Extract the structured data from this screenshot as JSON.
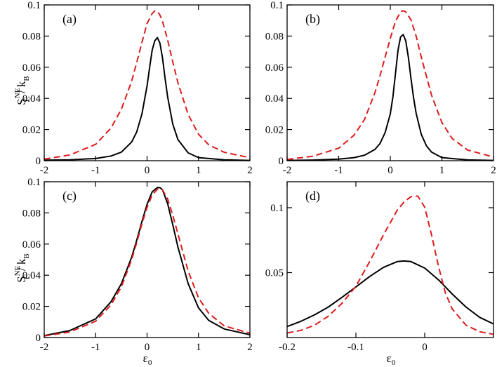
{
  "figure": {
    "ylabel": {
      "main": "S",
      "sup": "NE",
      "sub": "C",
      "sep": " / ",
      "k": "k",
      "ksub": "B"
    },
    "xlabel": {
      "main": "ε",
      "sub": "0"
    }
  },
  "colors": {
    "solid": "#000000",
    "dashed": "#dd1c1c"
  },
  "chart_data": [
    {
      "type": "line",
      "panel": "(a)",
      "xlim": [
        -2,
        2
      ],
      "ylim": [
        0,
        0.1
      ],
      "xticks": [
        -2,
        -1,
        0,
        1,
        2
      ],
      "xtick_labels": [
        "-2",
        "-1",
        "0",
        "1",
        "2"
      ],
      "yticks": [
        0,
        0.02,
        0.04,
        0.06,
        0.08,
        0.1
      ],
      "ytick_labels": [
        "0",
        "0.02",
        "0.04",
        "0.06",
        "0.08",
        "0.1"
      ],
      "series": [
        {
          "name": "solid",
          "style": "solid",
          "x": [
            -2,
            -1.5,
            -1,
            -0.7,
            -0.5,
            -0.3,
            -0.2,
            -0.1,
            0,
            0.05,
            0.1,
            0.15,
            0.2,
            0.25,
            0.3,
            0.35,
            0.4,
            0.5,
            0.6,
            0.8,
            1,
            1.5,
            2
          ],
          "y": [
            0.0003,
            0.0006,
            0.0014,
            0.003,
            0.0055,
            0.012,
            0.0185,
            0.03,
            0.048,
            0.06,
            0.071,
            0.077,
            0.079,
            0.0755,
            0.066,
            0.053,
            0.041,
            0.0235,
            0.0135,
            0.005,
            0.002,
            0.0006,
            0.0002
          ]
        },
        {
          "name": "dashed",
          "style": "dashed",
          "x": [
            -2,
            -1.5,
            -1,
            -0.7,
            -0.5,
            -0.3,
            -0.2,
            -0.1,
            0,
            0.1,
            0.15,
            0.2,
            0.25,
            0.3,
            0.4,
            0.5,
            0.6,
            0.8,
            1,
            1.2,
            1.5,
            2
          ],
          "y": [
            0.001,
            0.0037,
            0.0105,
            0.021,
            0.033,
            0.051,
            0.063,
            0.076,
            0.088,
            0.0945,
            0.0962,
            0.0958,
            0.0935,
            0.0895,
            0.0775,
            0.0635,
            0.05,
            0.0296,
            0.017,
            0.0102,
            0.0054,
            0.0019
          ]
        }
      ]
    },
    {
      "type": "line",
      "panel": "(b)",
      "xlim": [
        -2,
        2
      ],
      "ylim": [
        0,
        0.1
      ],
      "xticks": [
        -2,
        -1,
        0,
        1,
        2
      ],
      "xtick_labels": [
        "-2",
        "-1",
        "0",
        "1",
        "2"
      ],
      "yticks": [
        0,
        0.02,
        0.04,
        0.06,
        0.08,
        0.1
      ],
      "ytick_labels": [
        "0",
        "0.02",
        "0.04",
        "0.06",
        "0.08",
        "0.1"
      ],
      "series": [
        {
          "name": "solid",
          "style": "solid",
          "x": [
            -2,
            -1.5,
            -1,
            -0.7,
            -0.5,
            -0.3,
            -0.2,
            -0.1,
            0,
            0.05,
            0.1,
            0.15,
            0.2,
            0.25,
            0.3,
            0.35,
            0.4,
            0.45,
            0.5,
            0.6,
            0.7,
            0.8,
            1,
            1.5,
            2
          ],
          "y": [
            0.0002,
            0.0004,
            0.001,
            0.002,
            0.0035,
            0.0072,
            0.011,
            0.018,
            0.03,
            0.041,
            0.056,
            0.071,
            0.0795,
            0.081,
            0.077,
            0.0665,
            0.053,
            0.0405,
            0.0305,
            0.017,
            0.0095,
            0.0055,
            0.002,
            0.0005,
            0.0002
          ]
        },
        {
          "name": "dashed",
          "style": "dashed",
          "x": [
            -2,
            -1.5,
            -1,
            -0.7,
            -0.5,
            -0.3,
            -0.2,
            -0.1,
            0,
            0.1,
            0.2,
            0.25,
            0.3,
            0.4,
            0.5,
            0.6,
            0.8,
            1,
            1.2,
            1.5,
            2
          ],
          "y": [
            0.0008,
            0.0029,
            0.008,
            0.0165,
            0.0265,
            0.0435,
            0.0545,
            0.0665,
            0.0785,
            0.0895,
            0.0955,
            0.0963,
            0.0955,
            0.0905,
            0.08,
            0.0665,
            0.042,
            0.0245,
            0.0142,
            0.0068,
            0.0024
          ]
        }
      ]
    },
    {
      "type": "line",
      "panel": "(c)",
      "xlim": [
        -2,
        2
      ],
      "ylim": [
        0,
        0.1
      ],
      "xticks": [
        -2,
        -1,
        0,
        1,
        2
      ],
      "xtick_labels": [
        "-2",
        "-1",
        "0",
        "1",
        "2"
      ],
      "yticks": [
        0,
        0.02,
        0.04,
        0.06,
        0.08,
        0.1
      ],
      "ytick_labels": [
        "0",
        "0.02",
        "0.04",
        "0.06",
        "0.08",
        "0.1"
      ],
      "series": [
        {
          "name": "solid",
          "style": "solid",
          "x": [
            -2,
            -1.5,
            -1,
            -0.7,
            -0.5,
            -0.3,
            -0.2,
            -0.1,
            0,
            0.1,
            0.2,
            0.25,
            0.3,
            0.4,
            0.5,
            0.6,
            0.8,
            1,
            1.2,
            1.5,
            2
          ],
          "y": [
            0.0012,
            0.0045,
            0.012,
            0.023,
            0.0345,
            0.0515,
            0.0625,
            0.0745,
            0.0855,
            0.0935,
            0.0963,
            0.0962,
            0.0948,
            0.086,
            0.0725,
            0.058,
            0.0345,
            0.019,
            0.011,
            0.0055,
            0.0018
          ]
        },
        {
          "name": "dashed",
          "style": "dashed",
          "x": [
            -2,
            -1.5,
            -1,
            -0.7,
            -0.5,
            -0.3,
            -0.2,
            -0.1,
            0,
            0.1,
            0.2,
            0.25,
            0.3,
            0.4,
            0.5,
            0.6,
            0.8,
            1,
            1.2,
            1.5,
            2
          ],
          "y": [
            0.001,
            0.0035,
            0.0105,
            0.021,
            0.0325,
            0.05,
            0.061,
            0.073,
            0.0835,
            0.0915,
            0.0952,
            0.0955,
            0.0948,
            0.089,
            0.0785,
            0.0665,
            0.0425,
            0.0255,
            0.0155,
            0.0075,
            0.0028
          ]
        }
      ]
    },
    {
      "type": "line",
      "panel": "(d)",
      "xlim": [
        -0.2,
        0.1
      ],
      "ylim": [
        0,
        0.12
      ],
      "xticks": [
        -0.2,
        -0.1,
        0
      ],
      "xtick_labels": [
        "-0.2",
        "-0.1",
        "0"
      ],
      "yticks": [
        0.05,
        0.1
      ],
      "ytick_labels": [
        "0.05",
        "0.1"
      ],
      "series": [
        {
          "name": "solid",
          "style": "solid",
          "x": [
            -0.2,
            -0.18,
            -0.16,
            -0.14,
            -0.12,
            -0.1,
            -0.08,
            -0.06,
            -0.04,
            -0.03,
            -0.02,
            0,
            0.02,
            0.04,
            0.06,
            0.08,
            0.1
          ],
          "y": [
            0.0085,
            0.0125,
            0.0175,
            0.0235,
            0.031,
            0.039,
            0.047,
            0.054,
            0.0585,
            0.059,
            0.0585,
            0.0535,
            0.0445,
            0.0335,
            0.0235,
            0.0155,
            0.0105
          ]
        },
        {
          "name": "dashed",
          "style": "dashed",
          "x": [
            -0.2,
            -0.18,
            -0.16,
            -0.14,
            -0.12,
            -0.1,
            -0.08,
            -0.06,
            -0.04,
            -0.03,
            -0.02,
            -0.01,
            0,
            0.01,
            0.02,
            0.03,
            0.04,
            0.06,
            0.08,
            0.1
          ],
          "y": [
            0.0035,
            0.0055,
            0.0095,
            0.0165,
            0.0265,
            0.0395,
            0.0585,
            0.079,
            0.098,
            0.1045,
            0.1085,
            0.109,
            0.1005,
            0.079,
            0.055,
            0.0345,
            0.022,
            0.0095,
            0.0045,
            0.0025
          ]
        }
      ]
    }
  ]
}
